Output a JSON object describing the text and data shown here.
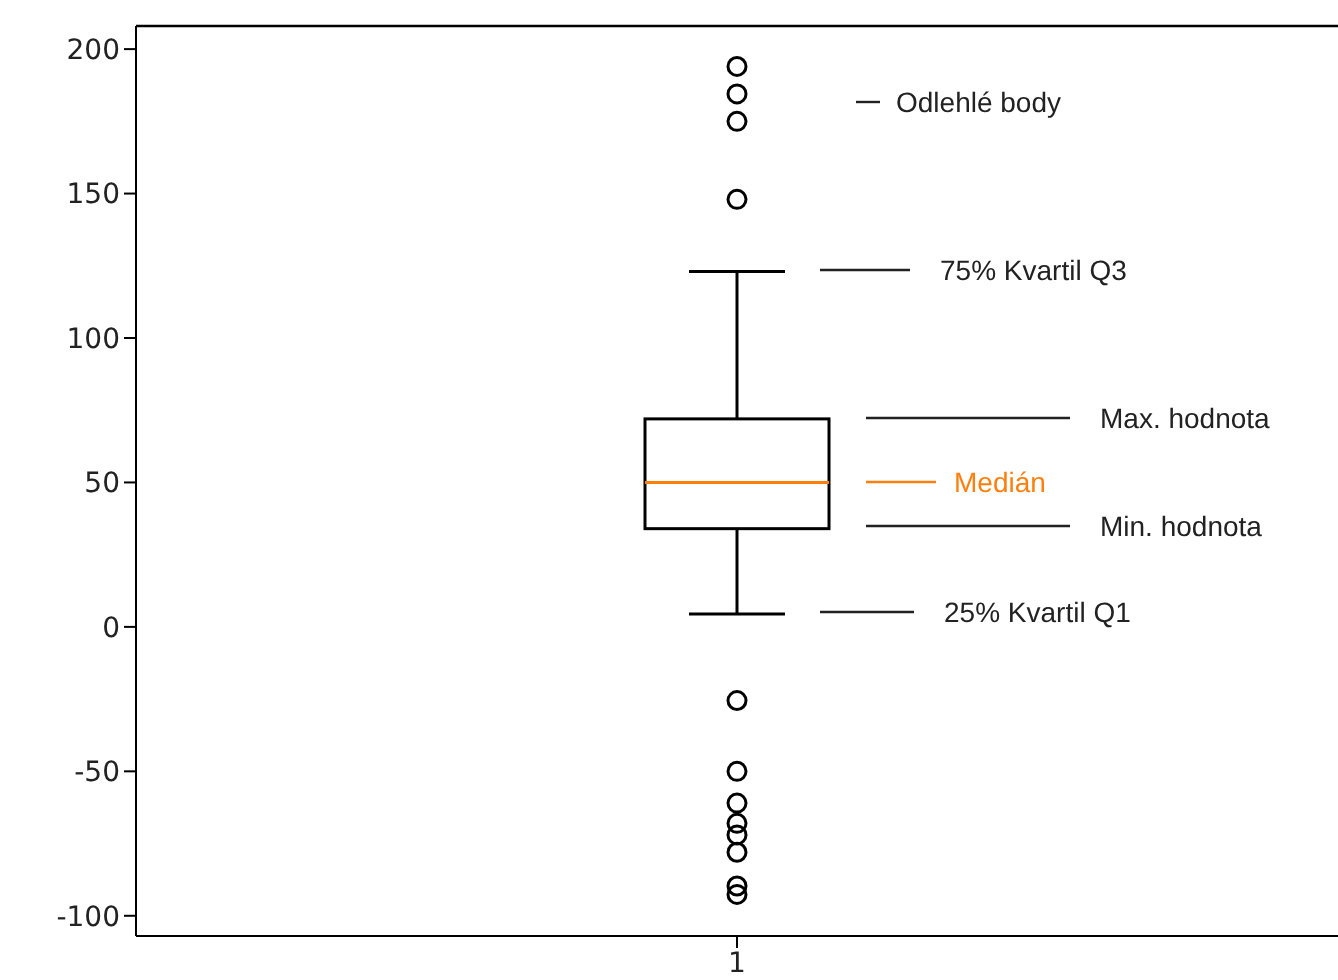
{
  "chart_data": {
    "type": "box",
    "categories": [
      "1"
    ],
    "series": [
      {
        "color": "#000000",
        "boxes": [
          {
            "low": 4.5,
            "q1": 34,
            "median": 50,
            "q3": 72,
            "high": 123,
            "outliers": [
              194,
              184.5,
              175,
              148,
              -25.5,
              -50,
              -61,
              -68,
              -72,
              -78,
              -89.7,
              -92.6
            ]
          }
        ]
      }
    ],
    "ylim": [
      -107,
      208
    ],
    "yticks": [
      -100,
      -50,
      0,
      50,
      100,
      150,
      200
    ],
    "annotations": [
      "Odlehlé body",
      "75% Kvartil Q3",
      "Max. hodnota",
      "Medián",
      "Min. hodnota",
      "25% Kvartil Q1"
    ]
  }
}
